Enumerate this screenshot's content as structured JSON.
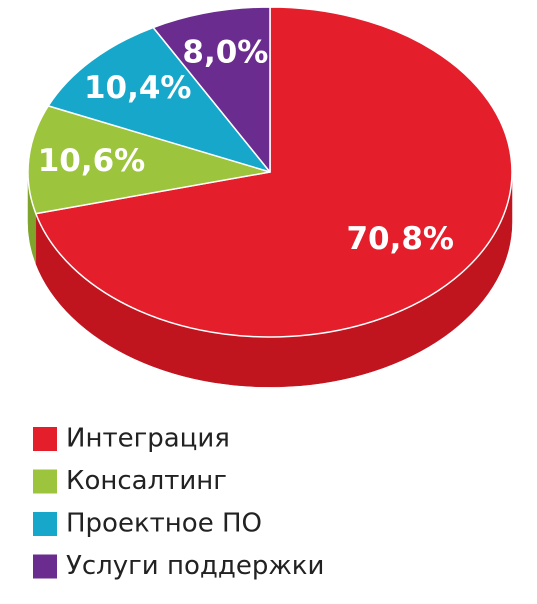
{
  "chart_data": {
    "type": "pie3d",
    "categories": [
      "Интеграция",
      "Консалтинг",
      "Проектное ПО",
      "Услуги поддержки"
    ],
    "values": [
      70.8,
      10.6,
      10.4,
      8.0
    ],
    "value_labels": [
      "70,8%",
      "10,6%",
      "10,4%",
      "8,0%"
    ],
    "colors": [
      "#e41e2b",
      "#9cc43c",
      "#17a7ca",
      "#6a2c8e"
    ],
    "side_colors": [
      "#c0141f",
      "#7fa42c",
      "#0f86a4",
      "#51206d"
    ]
  }
}
